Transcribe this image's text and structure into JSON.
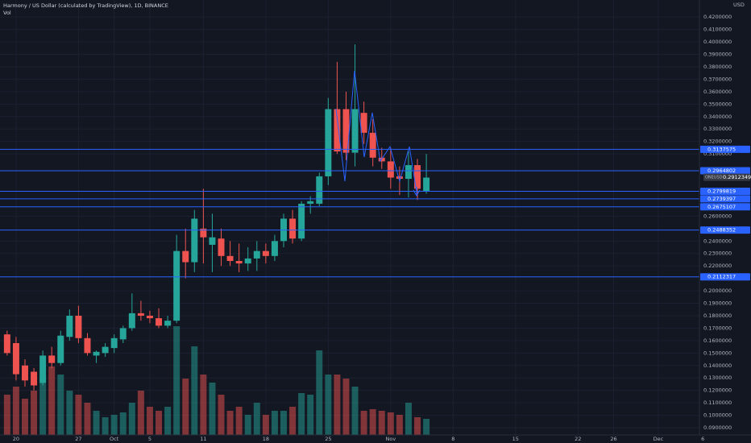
{
  "chart_data": {
    "type": "candlestick",
    "title": "Harmony / US Dollar (calculated by TradingView), 1D, BINANCE",
    "volume_label": "Vol",
    "currency": "USD",
    "symbol": "ONEUSD",
    "up_color": "#26a69a",
    "down_color": "#ef5350",
    "line_color": "#2962ff",
    "grid": true,
    "xlim": [
      -0.8,
      78.7
    ],
    "ylim": [
      0.0842,
      0.4337
    ],
    "vlim": [
      0,
      140
    ],
    "xticks": [
      {
        "value": 1,
        "label": "20"
      },
      {
        "value": 8,
        "label": "27"
      },
      {
        "value": 12,
        "label": "Oct"
      },
      {
        "value": 16,
        "label": "5"
      },
      {
        "value": 22,
        "label": "11"
      },
      {
        "value": 29,
        "label": "18"
      },
      {
        "value": 36,
        "label": "25"
      },
      {
        "value": 43,
        "label": "Nov"
      },
      {
        "value": 50,
        "label": "8"
      },
      {
        "value": 57,
        "label": "15"
      },
      {
        "value": 64,
        "label": "22"
      },
      {
        "value": 68,
        "label": "26"
      },
      {
        "value": 73,
        "label": "Dec"
      },
      {
        "value": 78,
        "label": "6"
      }
    ],
    "yticks": [
      {
        "value": 0.09,
        "label": "0.0900000"
      },
      {
        "value": 0.1,
        "label": "0.1000000"
      },
      {
        "value": 0.11,
        "label": "0.1100000"
      },
      {
        "value": 0.12,
        "label": "0.1200000"
      },
      {
        "value": 0.13,
        "label": "0.1300000"
      },
      {
        "value": 0.14,
        "label": "0.1400000"
      },
      {
        "value": 0.15,
        "label": "0.1500000"
      },
      {
        "value": 0.16,
        "label": "0.1600000"
      },
      {
        "value": 0.17,
        "label": "0.1700000"
      },
      {
        "value": 0.18,
        "label": "0.1800000"
      },
      {
        "value": 0.19,
        "label": "0.1900000"
      },
      {
        "value": 0.2,
        "label": "0.2000000"
      },
      {
        "value": 0.22,
        "label": "0.2200000"
      },
      {
        "value": 0.23,
        "label": "0.2300000"
      },
      {
        "value": 0.24,
        "label": "0.2400000"
      },
      {
        "value": 0.26,
        "label": "0.2600000"
      },
      {
        "value": 0.31,
        "label": "0.3100000"
      },
      {
        "value": 0.32,
        "label": "0.3200000"
      },
      {
        "value": 0.33,
        "label": "0.3300000"
      },
      {
        "value": 0.34,
        "label": "0.3400000"
      },
      {
        "value": 0.35,
        "label": "0.3500000"
      },
      {
        "value": 0.36,
        "label": "0.3600000"
      },
      {
        "value": 0.37,
        "label": "0.3700000"
      },
      {
        "value": 0.38,
        "label": "0.3800000"
      },
      {
        "value": 0.39,
        "label": "0.3900000"
      },
      {
        "value": 0.4,
        "label": "0.4000000"
      },
      {
        "value": 0.41,
        "label": "0.4100000"
      },
      {
        "value": 0.42,
        "label": "0.4200000"
      }
    ],
    "price_lines": [
      {
        "value": 0.3137575,
        "label": "0.3137575"
      },
      {
        "value": 0.2964802,
        "label": "0.2964802"
      },
      {
        "value": 0.2799819,
        "label": "0.2799819"
      },
      {
        "value": 0.2739397,
        "label": "0.2739397"
      },
      {
        "value": 0.2675107,
        "label": "0.2675107"
      },
      {
        "value": 0.2488352,
        "label": "0.2488352"
      },
      {
        "value": 0.2112317,
        "label": "0.2112317"
      }
    ],
    "last_price": {
      "value": 0.2912349,
      "label": "0.2912349"
    },
    "open": [
      0.165,
      0.158,
      0.14,
      0.135,
      0.126,
      0.148,
      0.142,
      0.163,
      0.18,
      0.162,
      0.148,
      0.15,
      0.154,
      0.161,
      0.17,
      0.182,
      0.18,
      0.178,
      0.172,
      0.176,
      0.232,
      0.223,
      0.25,
      0.237,
      0.242,
      0.228,
      0.224,
      0.222,
      0.226,
      0.232,
      0.228,
      0.24,
      0.258,
      0.242,
      0.27,
      0.27,
      0.292,
      0.346,
      0.346,
      0.311,
      0.343,
      0.327,
      0.307,
      0.304,
      0.292,
      0.29,
      0.301,
      0.28
    ],
    "high": [
      0.168,
      0.163,
      0.145,
      0.138,
      0.152,
      0.155,
      0.168,
      0.185,
      0.188,
      0.166,
      0.152,
      0.158,
      0.165,
      0.172,
      0.198,
      0.192,
      0.184,
      0.186,
      0.18,
      0.245,
      0.25,
      0.265,
      0.282,
      0.262,
      0.25,
      0.24,
      0.238,
      0.235,
      0.24,
      0.238,
      0.245,
      0.262,
      0.265,
      0.272,
      0.276,
      0.295,
      0.355,
      0.384,
      0.36,
      0.398,
      0.352,
      0.338,
      0.315,
      0.315,
      0.3,
      0.312,
      0.306,
      0.31
    ],
    "low": [
      0.148,
      0.128,
      0.123,
      0.12,
      0.124,
      0.138,
      0.14,
      0.16,
      0.158,
      0.148,
      0.142,
      0.147,
      0.15,
      0.158,
      0.168,
      0.176,
      0.174,
      0.17,
      0.17,
      0.174,
      0.21,
      0.215,
      0.222,
      0.215,
      0.22,
      0.22,
      0.215,
      0.216,
      0.216,
      0.222,
      0.224,
      0.235,
      0.238,
      0.24,
      0.262,
      0.268,
      0.285,
      0.31,
      0.305,
      0.3,
      0.318,
      0.3,
      0.298,
      0.282,
      0.277,
      0.275,
      0.273,
      0.278
    ],
    "close": [
      0.15,
      0.133,
      0.128,
      0.124,
      0.148,
      0.142,
      0.164,
      0.18,
      0.162,
      0.15,
      0.151,
      0.155,
      0.162,
      0.17,
      0.182,
      0.18,
      0.178,
      0.172,
      0.176,
      0.232,
      0.223,
      0.258,
      0.243,
      0.243,
      0.228,
      0.224,
      0.222,
      0.226,
      0.232,
      0.228,
      0.24,
      0.258,
      0.242,
      0.27,
      0.272,
      0.292,
      0.346,
      0.312,
      0.311,
      0.346,
      0.327,
      0.307,
      0.304,
      0.291,
      0.29,
      0.301,
      0.282,
      0.291
    ],
    "volume": [
      50,
      60,
      45,
      55,
      70,
      85,
      75,
      55,
      50,
      40,
      30,
      22,
      25,
      28,
      40,
      55,
      35,
      30,
      35,
      135,
      70,
      110,
      75,
      65,
      50,
      30,
      35,
      25,
      40,
      25,
      30,
      30,
      35,
      52,
      50,
      105,
      75,
      75,
      70,
      60,
      30,
      32,
      30,
      28,
      25,
      40,
      22,
      20
    ]
  }
}
